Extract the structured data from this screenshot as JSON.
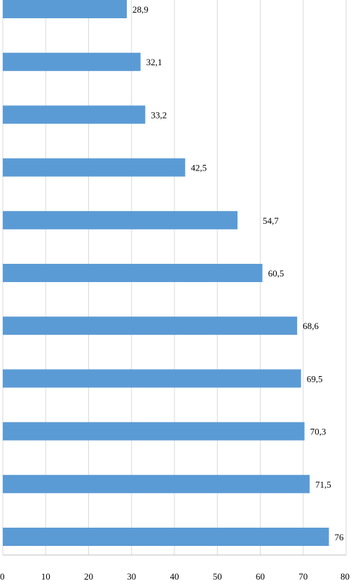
{
  "chart_data": {
    "type": "bar",
    "orientation": "horizontal",
    "values": [
      28.9,
      32.1,
      33.2,
      42.5,
      54.7,
      60.5,
      68.6,
      69.5,
      70.3,
      71.5,
      76
    ],
    "data_labels": [
      "28,9",
      "32,1",
      "33,2",
      "42,5",
      "54,7",
      "60,5",
      "68,6",
      "69,5",
      "70,3",
      "71,5",
      "76"
    ],
    "x_ticks": [
      "0",
      "10",
      "20",
      "30",
      "40",
      "50",
      "60",
      "70",
      "80"
    ],
    "xlim": [
      0,
      80
    ],
    "grid": "vertical",
    "legend": "none",
    "bar_color": "#5b9bd5"
  }
}
